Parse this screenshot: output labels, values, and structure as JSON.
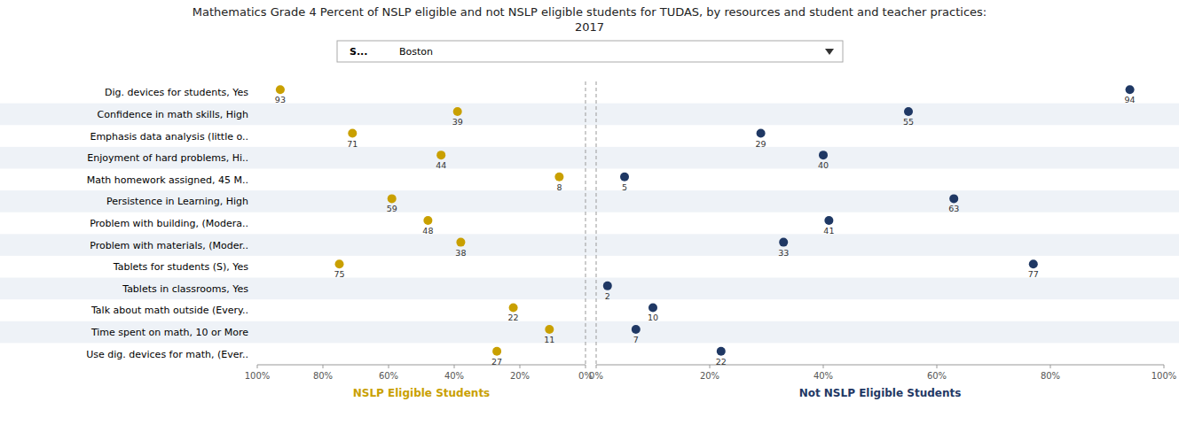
{
  "chart_data": {
    "type": "dot",
    "orientation": "horizontal",
    "title": "Mathematics Grade 4 Percent of NSLP eligible and not NSLP eligible students for TUDAS, by resources and student and teacher practices:",
    "subtitle": "2017",
    "annotations": [
      "S...",
      "Boston"
    ],
    "categories": [
      "Dig. devices for students, Yes",
      "Confidence in math skills, High",
      "Emphasis data analysis (little o..",
      "Enjoyment of hard problems, Hi..",
      "Math homework assigned, 45 M..",
      "Persistence in Learning, High",
      "Problem with building, (Modera..",
      "Problem with materials, (Moder..",
      "Tablets for students (S), Yes",
      "Tablets in classrooms, Yes",
      "Talk about math outside (Every..",
      "Time spent on math, 10 or More",
      "Use dig. devices for math,  (Ever.."
    ],
    "data_labels": true,
    "grid": false,
    "series": [
      {
        "name": "NSLP Eligible Students",
        "color": "#C9A000",
        "values": [
          93,
          39,
          71,
          44,
          8,
          59,
          48,
          38,
          75,
          null,
          22,
          11,
          27
        ],
        "xlim": [
          100,
          0
        ],
        "xticks": [
          {
            "value": 100,
            "label": "100%"
          },
          {
            "value": 80,
            "label": "80%"
          },
          {
            "value": 60,
            "label": "60%"
          },
          {
            "value": 40,
            "label": "40%"
          },
          {
            "value": 20,
            "label": "20%"
          },
          {
            "value": 0,
            "label": "0%"
          }
        ]
      },
      {
        "name": "Not NSLP Eligible Students",
        "color": "#1F3864",
        "values": [
          94,
          55,
          29,
          40,
          5,
          63,
          41,
          33,
          77,
          2,
          10,
          7,
          22
        ],
        "xlim": [
          0,
          100
        ],
        "xticks": [
          {
            "value": 0,
            "label": "0%"
          },
          {
            "value": 20,
            "label": "20%"
          },
          {
            "value": 40,
            "label": "40%"
          },
          {
            "value": 60,
            "label": "60%"
          },
          {
            "value": 80,
            "label": "80%"
          },
          {
            "value": 100,
            "label": "100%"
          }
        ]
      }
    ]
  }
}
